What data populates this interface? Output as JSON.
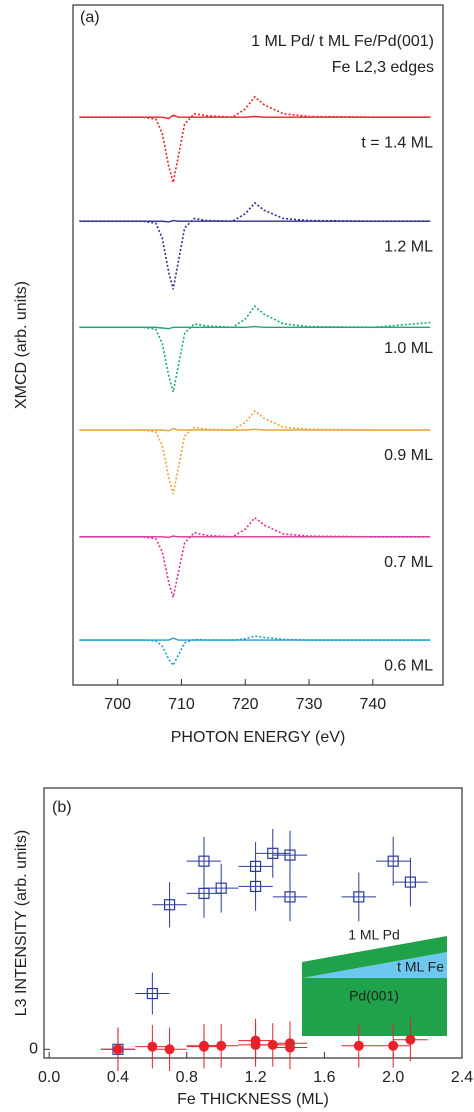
{
  "chart_data": [
    {
      "type": "line",
      "panel_label": "(a)",
      "title": "1 ML Pd/ t ML Fe/Pd(001)",
      "subtitle": "Fe L2,3 edges",
      "xlabel": "PHOTON ENERGY (eV)",
      "ylabel": "XMCD (arb. units)",
      "xlim": [
        693,
        751
      ],
      "xticks": [
        700,
        710,
        720,
        730,
        740
      ],
      "ylim": [
        0,
        100
      ],
      "x": [
        694,
        700,
        704,
        706,
        707,
        708,
        708.7,
        709.5,
        710.5,
        712,
        714,
        718,
        720,
        721.5,
        723,
        726,
        730,
        740,
        749
      ],
      "series": [
        {
          "color": "#e8212a",
          "style": "dotted",
          "label": "t = 1.4 ML",
          "values": [
            83.5,
            83.5,
            83.5,
            83.2,
            81.1,
            76.3,
            73.9,
            77.7,
            82.5,
            84.0,
            83.7,
            83.5,
            84.7,
            86.5,
            85.3,
            84.0,
            83.6,
            83.5,
            83.5
          ]
        },
        {
          "color": "#e8212a",
          "style": "solid",
          "values": [
            83.5,
            83.5,
            83.5,
            83.5,
            83.5,
            83.3,
            83.8,
            83.5,
            83.5,
            83.5,
            83.5,
            83.5,
            83.5,
            83.6,
            83.5,
            83.5,
            83.5,
            83.5,
            83.5
          ]
        },
        {
          "color": "#2b2f8f",
          "style": "dotted",
          "label": "1.2 ML",
          "values": [
            68.2,
            68.2,
            68.2,
            67.9,
            65.7,
            60.7,
            58.2,
            62.2,
            67.2,
            68.6,
            68.3,
            68.2,
            69.3,
            70.9,
            69.8,
            68.6,
            68.3,
            68.2,
            68.2
          ]
        },
        {
          "color": "#2b2f8f",
          "style": "solid",
          "values": [
            68.2,
            68.2,
            68.2,
            68.2,
            68.2,
            68.1,
            68.3,
            68.2,
            68.2,
            68.2,
            68.2,
            68.2,
            68.2,
            68.2,
            68.2,
            68.2,
            68.2,
            68.2,
            68.2
          ]
        },
        {
          "color": "#1aa87a",
          "style": "dotted",
          "label": "1.0 ML",
          "values": [
            52.6,
            52.6,
            52.6,
            52.3,
            50.2,
            45.5,
            43.1,
            46.9,
            51.7,
            53.1,
            52.8,
            52.6,
            53.8,
            55.7,
            54.5,
            53.1,
            52.7,
            52.6,
            53.3
          ]
        },
        {
          "color": "#1aa87a",
          "style": "solid",
          "values": [
            52.6,
            52.6,
            52.6,
            52.6,
            52.5,
            52.4,
            52.6,
            52.6,
            52.6,
            52.6,
            52.6,
            52.6,
            52.6,
            52.7,
            52.6,
            52.6,
            52.6,
            52.6,
            52.6
          ]
        },
        {
          "color": "#e8a33d",
          "style": "dotted",
          "label": "0.9 ML",
          "values": [
            37.5,
            37.5,
            37.5,
            37.2,
            35.2,
            30.5,
            28.1,
            31.9,
            36.6,
            37.9,
            37.6,
            37.5,
            38.6,
            40.3,
            39.2,
            37.9,
            37.6,
            37.5,
            37.5
          ]
        },
        {
          "color": "#e8a33d",
          "style": "solid",
          "values": [
            37.5,
            37.5,
            37.5,
            37.5,
            37.5,
            37.4,
            37.7,
            37.5,
            37.5,
            37.5,
            37.5,
            37.5,
            37.5,
            37.6,
            37.5,
            37.5,
            37.5,
            37.5,
            37.5
          ]
        },
        {
          "color": "#d6309a",
          "style": "dotted",
          "label": "0.7 ML",
          "values": [
            21.8,
            21.8,
            21.8,
            21.5,
            19.6,
            15.1,
            12.9,
            16.5,
            20.9,
            22.4,
            22.0,
            21.8,
            22.9,
            24.6,
            23.5,
            22.2,
            21.9,
            21.8,
            21.8
          ]
        },
        {
          "color": "#d6309a",
          "style": "solid",
          "values": [
            21.8,
            21.8,
            21.8,
            21.8,
            21.8,
            21.7,
            21.9,
            21.8,
            21.8,
            21.8,
            21.8,
            21.8,
            21.8,
            21.8,
            21.8,
            21.8,
            21.8,
            21.8,
            21.8
          ]
        },
        {
          "color": "#1aa0c8",
          "style": "dotted",
          "label": "0.6 ML",
          "values": [
            6.6,
            6.6,
            6.6,
            6.5,
            5.7,
            3.8,
            2.9,
            4.4,
            6.2,
            6.7,
            6.6,
            6.6,
            6.8,
            7.2,
            7.0,
            6.7,
            6.6,
            6.6,
            6.6
          ]
        },
        {
          "color": "#1aa0c8",
          "style": "solid",
          "values": [
            6.6,
            6.6,
            6.6,
            6.6,
            6.6,
            6.6,
            6.9,
            6.6,
            6.6,
            6.6,
            6.6,
            6.6,
            6.6,
            6.6,
            6.6,
            6.6,
            6.6,
            6.6,
            6.6
          ]
        }
      ]
    },
    {
      "type": "scatter",
      "panel_label": "(b)",
      "xlabel": "Fe THICKNESS (ML)",
      "ylabel": "L3 INTENSITY (arb. units)",
      "xlim": [
        -0.03,
        2.4
      ],
      "xticks": [
        {
          "value": 0,
          "label": "0.0"
        },
        0.4,
        0.8,
        1.2,
        1.6,
        {
          "value": 2,
          "label": "2.0"
        },
        2.4
      ],
      "ylim": [
        -0.1,
        3
      ],
      "yticks": [
        0
      ],
      "inset_labels": [
        "1 ML Pd",
        "t ML Fe",
        "Pd(001)"
      ],
      "series": [
        {
          "marker": "square-open",
          "color": "#2b3a9c",
          "x": [
            0.4,
            0.6,
            0.7,
            0.9,
            0.9,
            1.0,
            1.2,
            1.2,
            1.3,
            1.4,
            1.4,
            1.8,
            2.0,
            2.1
          ],
          "values": [
            0,
            0.64,
            1.66,
            2.16,
            1.79,
            1.85,
            2.1,
            1.87,
            2.25,
            2.23,
            1.75,
            1.75,
            2.16,
            1.92
          ],
          "xerr": [
            0.1,
            0.1,
            0.1,
            0.1,
            0.1,
            0.1,
            0.1,
            0.1,
            0.1,
            0.1,
            0.1,
            0.1,
            0.1,
            0.1
          ],
          "yerr": [
            0.25,
            0.24,
            0.26,
            0.28,
            0.28,
            0.28,
            0.28,
            0.28,
            0.28,
            0.28,
            0.28,
            0.28,
            0.28,
            0.28
          ]
        },
        {
          "marker": "circle-filled",
          "color": "#e8212a",
          "x": [
            0.4,
            0.6,
            0.7,
            0.9,
            0.9,
            1.0,
            1.2,
            1.2,
            1.3,
            1.4,
            1.4,
            1.8,
            2.0,
            2.1
          ],
          "values": [
            0,
            0.03,
            0,
            0.04,
            0.03,
            0.04,
            0.05,
            0.1,
            0.05,
            0.07,
            0.02,
            0.04,
            0.04,
            0.11
          ],
          "xerr": [
            0.1,
            0.1,
            0.1,
            0.1,
            0.1,
            0.1,
            0.1,
            0.1,
            0.1,
            0.1,
            0.1,
            0.1,
            0.1,
            0.1
          ],
          "yerr": [
            0.25,
            0.25,
            0.25,
            0.25,
            0.25,
            0.25,
            0.25,
            0.25,
            0.25,
            0.25,
            0.25,
            0.25,
            0.25,
            0.25
          ]
        }
      ]
    }
  ]
}
